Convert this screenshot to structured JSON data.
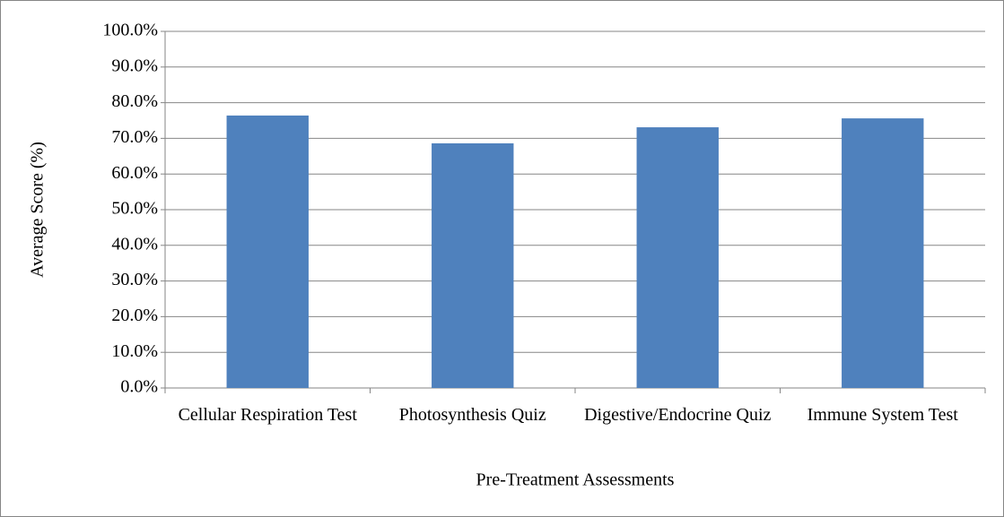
{
  "chart_data": {
    "type": "bar",
    "x_label": "Pre-Treatment Assessments",
    "y_label": "Average Score (%)",
    "categories": [
      "Cellular Respiration Test",
      "Photosynthesis Quiz",
      "Digestive/Endocrine Quiz",
      "Immune System Test"
    ],
    "values": [
      76.4,
      68.6,
      73.1,
      75.6
    ],
    "color": "#4f81bd",
    "ylim": [
      0,
      100
    ],
    "yticks": [
      {
        "value": 0,
        "label": "0.0%"
      },
      {
        "value": 10,
        "label": "10.0%"
      },
      {
        "value": 20,
        "label": "20.0%"
      },
      {
        "value": 30,
        "label": "30.0%"
      },
      {
        "value": 40,
        "label": "40.0%"
      },
      {
        "value": 50,
        "label": "50.0%"
      },
      {
        "value": 60,
        "label": "60.0%"
      },
      {
        "value": 70,
        "label": "70.0%"
      },
      {
        "value": 80,
        "label": "80.0%"
      },
      {
        "value": 90,
        "label": "90.0%"
      },
      {
        "value": 100,
        "label": "100.0%"
      }
    ],
    "grid": true
  }
}
